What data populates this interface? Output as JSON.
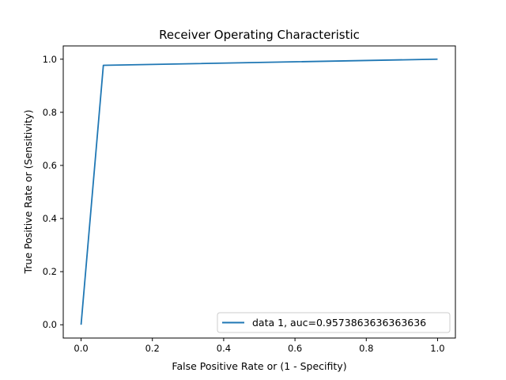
{
  "chart_data": {
    "type": "line",
    "title": "Receiver Operating Characteristic",
    "xlabel": "False Positive Rate or (1 - Specifity)",
    "ylabel": "True Positive Rate or (Sensitivity)",
    "xlim": [
      -0.05,
      1.05
    ],
    "ylim": [
      -0.05,
      1.05
    ],
    "xticks": [
      "0.0",
      "0.2",
      "0.4",
      "0.6",
      "0.8",
      "1.0"
    ],
    "yticks": [
      "0.0",
      "0.2",
      "0.4",
      "0.6",
      "0.8",
      "1.0"
    ],
    "grid": false,
    "legend_position": "lower-right",
    "series": [
      {
        "name": "data 1, auc=0.9573863636363636",
        "color": "#1f77b4",
        "x": [
          0.0,
          0.0625,
          1.0
        ],
        "y": [
          0.0,
          0.977,
          1.0
        ]
      }
    ]
  }
}
